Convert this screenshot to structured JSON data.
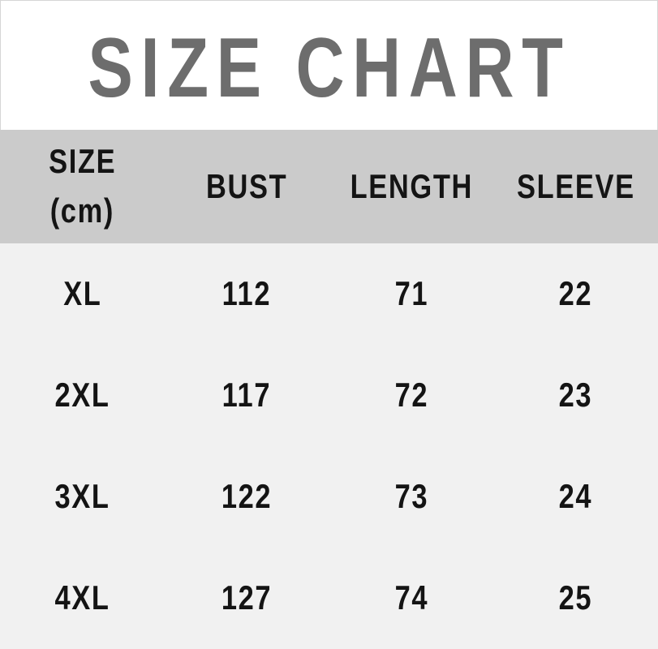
{
  "title": "SIZE CHART",
  "colors": {
    "title_text": "#6d6d6d",
    "title_bg": "#ffffff",
    "title_border": "#d6d6d6",
    "header_bg": "#cbcbcb",
    "body_bg": "#f1f1f1",
    "cell_text": "#141414"
  },
  "table": {
    "header": {
      "size_label": "SIZE",
      "size_unit": "(cm)",
      "bust": "BUST",
      "length": "LENGTH",
      "sleeve": "SLEEVE"
    },
    "rows": [
      [
        "XL",
        "112",
        "71",
        "22"
      ],
      [
        "2XL",
        "117",
        "72",
        "23"
      ],
      [
        "3XL",
        "122",
        "73",
        "24"
      ],
      [
        "4XL",
        "127",
        "74",
        "25"
      ]
    ]
  },
  "chart_data": {
    "type": "table",
    "title": "SIZE CHART",
    "unit": "cm",
    "columns": [
      "SIZE (cm)",
      "BUST",
      "LENGTH",
      "SLEEVE"
    ],
    "rows": [
      [
        "XL",
        112,
        71,
        22
      ],
      [
        "2XL",
        117,
        72,
        23
      ],
      [
        "3XL",
        122,
        73,
        24
      ],
      [
        "4XL",
        127,
        74,
        25
      ]
    ]
  }
}
